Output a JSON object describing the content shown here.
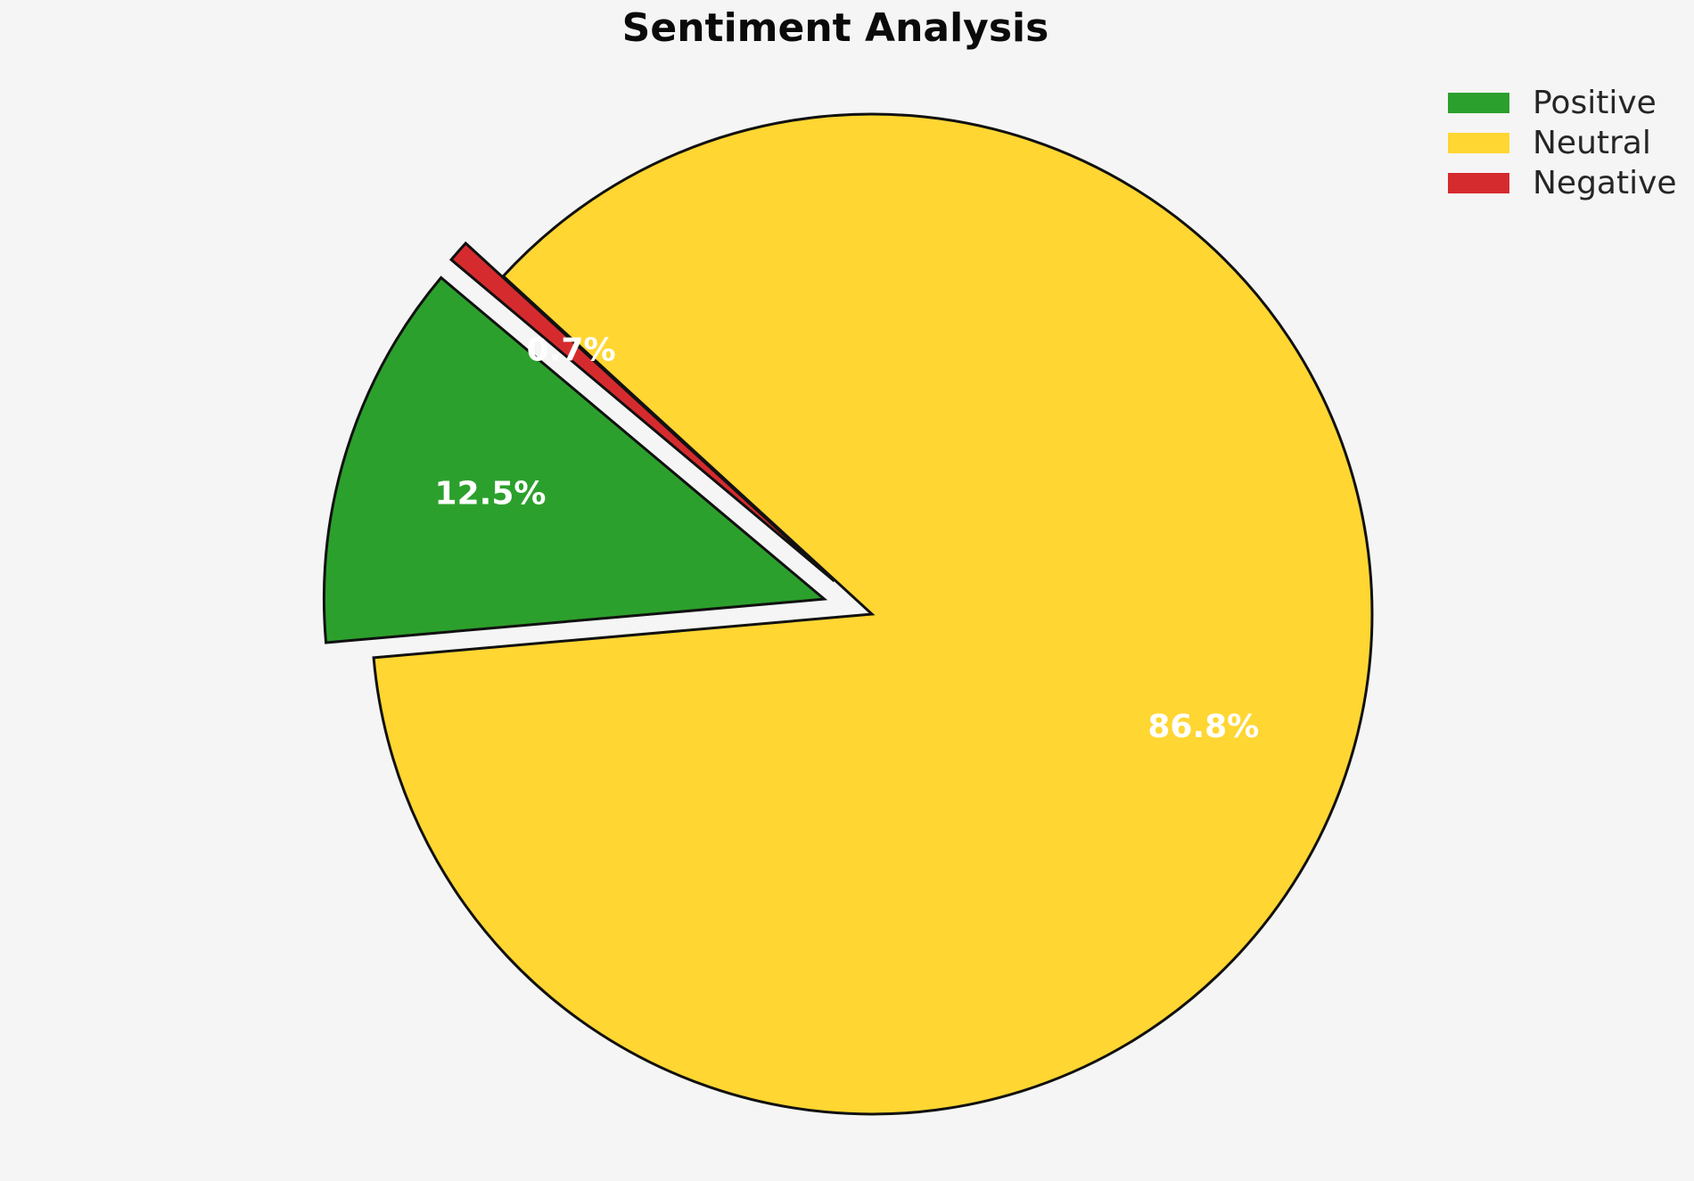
{
  "chart_data": {
    "type": "pie",
    "title": "Sentiment Analysis",
    "categories": [
      "Positive",
      "Neutral",
      "Negative"
    ],
    "values": [
      12.5,
      86.8,
      0.7
    ],
    "slice_labels": [
      "12.5%",
      "86.8%",
      "0.7%"
    ],
    "colors": [
      "#2ca02c",
      "#ffd632",
      "#d62b2e"
    ],
    "start_angle_deg": 140,
    "direction": "counterclockwise",
    "explode": [
      0.1,
      0,
      0.1
    ],
    "pct_distance": 0.7,
    "edge_color": "#111111",
    "edge_width": 3,
    "label_color": "#ffffff",
    "background_color": "#f5f5f5",
    "legend_position": "upper right",
    "legend_entries": [
      "Positive",
      "Neutral",
      "Negative"
    ]
  }
}
